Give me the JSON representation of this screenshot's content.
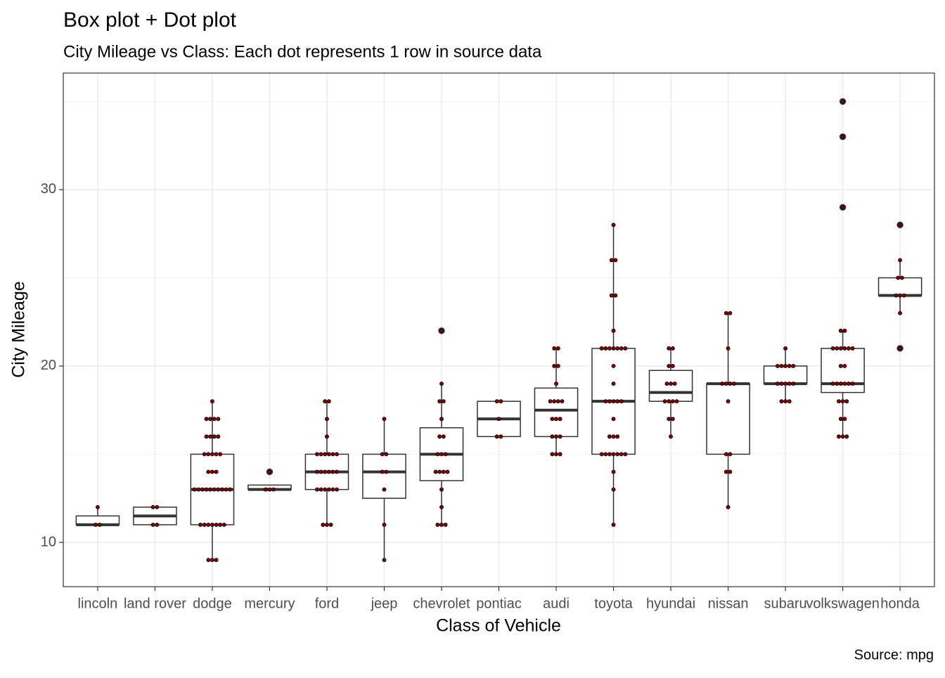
{
  "chart_data": {
    "type": "box",
    "title": "Box plot + Dot plot",
    "subtitle": "City Mileage vs Class: Each dot represents 1 row in source data",
    "x_label": "Class of Vehicle",
    "y_label": "City Mileage",
    "caption": "Source: mpg",
    "categories": [
      "lincoln",
      "land rover",
      "dodge",
      "mercury",
      "ford",
      "jeep",
      "chevrolet",
      "pontiac",
      "audi",
      "toyota",
      "hyundai",
      "nissan",
      "subaru",
      "volkswagen",
      "honda"
    ],
    "boxes": [
      {
        "lower": 11,
        "q1": 11,
        "median": 11,
        "q3": 11.5,
        "upper": 12,
        "outliers": []
      },
      {
        "lower": 11,
        "q1": 11,
        "median": 11.5,
        "q3": 12,
        "upper": 12,
        "outliers": []
      },
      {
        "lower": 9,
        "q1": 11,
        "median": 13,
        "q3": 15,
        "upper": 18,
        "outliers": []
      },
      {
        "lower": 13,
        "q1": 13,
        "median": 13,
        "q3": 13.25,
        "upper": 13,
        "outliers": [
          14
        ]
      },
      {
        "lower": 11,
        "q1": 13,
        "median": 14,
        "q3": 15,
        "upper": 18,
        "outliers": []
      },
      {
        "lower": 9,
        "q1": 12.5,
        "median": 14,
        "q3": 15,
        "upper": 17,
        "outliers": []
      },
      {
        "lower": 11,
        "q1": 13.5,
        "median": 15,
        "q3": 16.5,
        "upper": 19,
        "outliers": [
          22
        ]
      },
      {
        "lower": 16,
        "q1": 16,
        "median": 17,
        "q3": 18,
        "upper": 18,
        "outliers": []
      },
      {
        "lower": 15,
        "q1": 16,
        "median": 17.5,
        "q3": 18.75,
        "upper": 21,
        "outliers": []
      },
      {
        "lower": 11,
        "q1": 15,
        "median": 18,
        "q3": 21,
        "upper": 28,
        "outliers": []
      },
      {
        "lower": 16,
        "q1": 18,
        "median": 18.5,
        "q3": 19.75,
        "upper": 21,
        "outliers": []
      },
      {
        "lower": 12,
        "q1": 15,
        "median": 19,
        "q3": 19,
        "upper": 23,
        "outliers": []
      },
      {
        "lower": 18,
        "q1": 19,
        "median": 19,
        "q3": 20,
        "upper": 21,
        "outliers": []
      },
      {
        "lower": 16,
        "q1": 18.5,
        "median": 19,
        "q3": 21,
        "upper": 22,
        "outliers": [
          29,
          33,
          35
        ]
      },
      {
        "lower": 23,
        "q1": 24,
        "median": 24,
        "q3": 25,
        "upper": 26,
        "outliers": [
          21,
          28
        ]
      }
    ],
    "dots": [
      [
        11,
        11,
        12
      ],
      [
        11,
        11,
        12,
        12
      ],
      [
        9,
        9,
        9,
        11,
        11,
        11,
        11,
        11,
        11,
        11,
        13,
        13,
        13,
        13,
        13,
        13,
        13,
        13,
        13,
        13,
        14,
        14,
        14,
        15,
        15,
        15,
        15,
        15,
        16,
        16,
        16,
        16,
        17,
        17,
        17,
        17,
        18
      ],
      [
        13,
        13,
        13,
        14
      ],
      [
        11,
        11,
        11,
        13,
        13,
        13,
        13,
        13,
        13,
        14,
        14,
        14,
        14,
        14,
        14,
        15,
        15,
        15,
        15,
        15,
        15,
        16,
        17,
        18,
        18
      ],
      [
        9,
        11,
        13,
        14,
        14,
        15,
        15,
        17
      ],
      [
        11,
        11,
        11,
        12,
        13,
        14,
        14,
        14,
        14,
        15,
        15,
        15,
        16,
        16,
        17,
        18,
        18,
        19,
        22
      ],
      [
        16,
        16,
        17,
        18,
        18
      ],
      [
        15,
        15,
        15,
        16,
        16,
        16,
        17,
        17,
        17,
        18,
        18,
        18,
        18,
        19,
        20,
        20,
        21,
        21
      ],
      [
        11,
        13,
        14,
        15,
        15,
        15,
        15,
        15,
        15,
        15,
        16,
        16,
        16,
        17,
        18,
        18,
        18,
        18,
        18,
        19,
        20,
        21,
        21,
        21,
        21,
        21,
        21,
        21,
        22,
        24,
        24,
        26,
        26,
        28
      ],
      [
        16,
        17,
        17,
        18,
        18,
        18,
        18,
        19,
        19,
        19,
        20,
        20,
        21,
        21
      ],
      [
        12,
        14,
        14,
        15,
        15,
        18,
        19,
        19,
        19,
        19,
        21,
        23,
        23
      ],
      [
        18,
        18,
        18,
        19,
        19,
        19,
        19,
        19,
        20,
        20,
        20,
        20,
        20,
        21
      ],
      [
        16,
        16,
        16,
        17,
        17,
        18,
        18,
        18,
        19,
        19,
        19,
        19,
        19,
        19,
        20,
        20,
        21,
        21,
        21,
        21,
        21,
        21,
        22,
        22,
        29,
        33,
        35
      ],
      [
        21,
        23,
        24,
        24,
        24,
        25,
        25,
        26,
        28
      ]
    ],
    "dot_color": "#8b0000",
    "ylim": [
      7.49,
      36.61
    ],
    "yticks": [
      10,
      20,
      30
    ],
    "yminor": [
      15,
      25,
      35
    ],
    "grid": true
  }
}
